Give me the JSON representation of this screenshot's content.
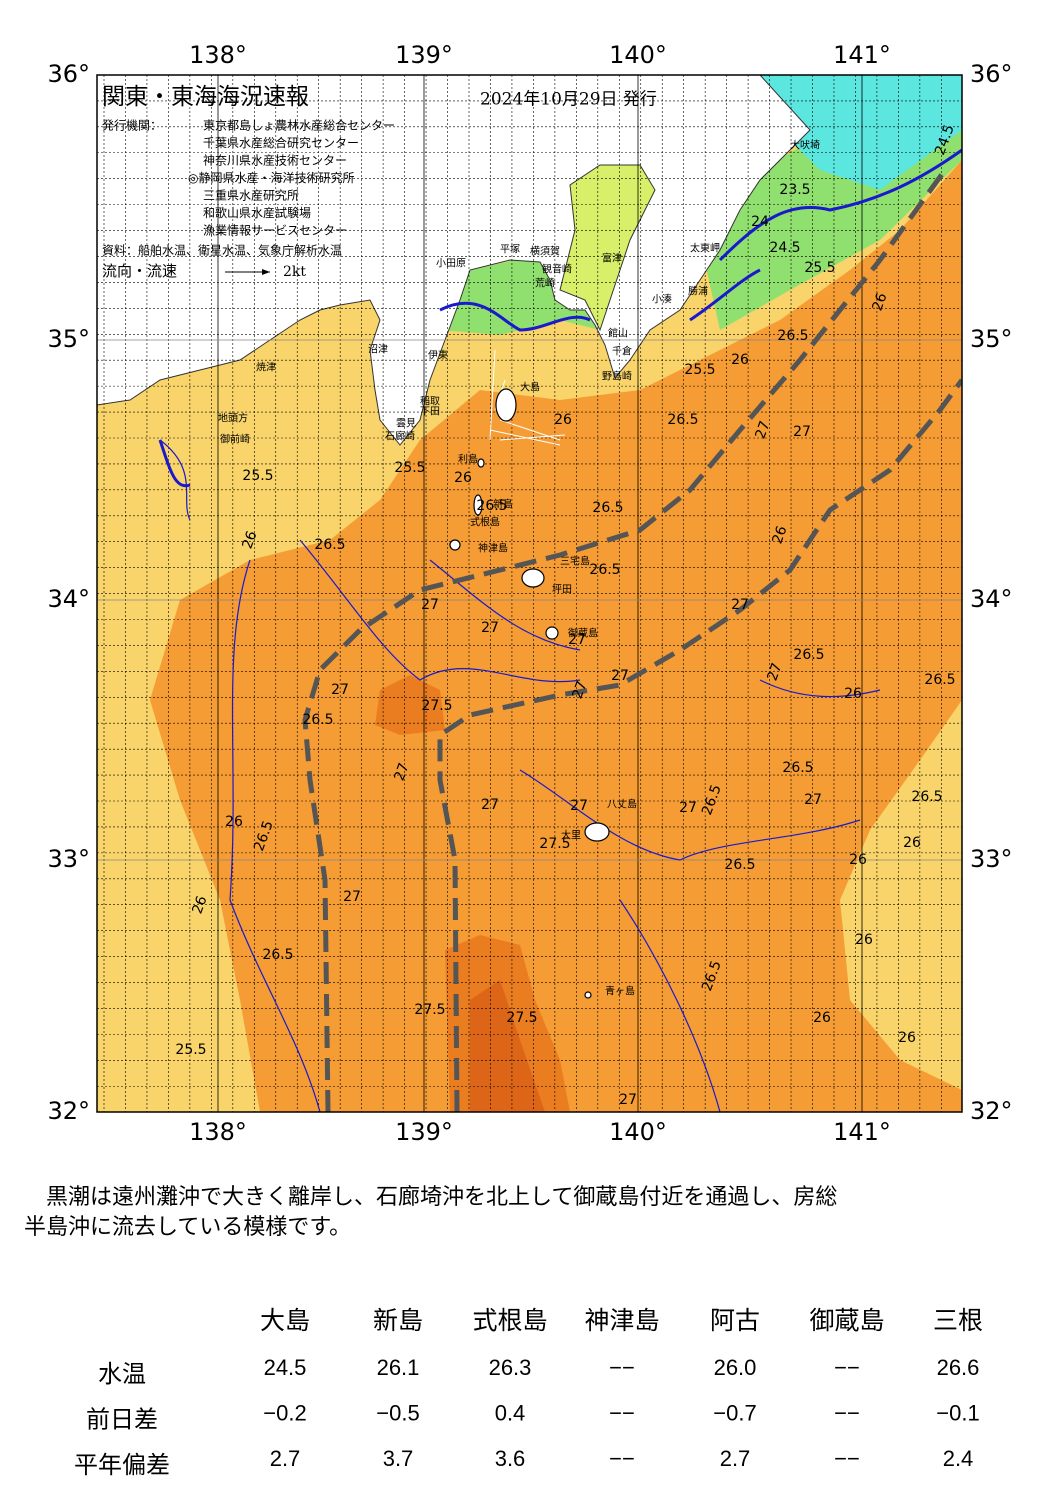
{
  "header": {
    "title": "関東・東海海況速報",
    "date": "2024年10月29日 発行",
    "issuer_label": "発行機関：",
    "issuers": [
      "東京都島しょ農林水産総合センター",
      "千葉県水産総合研究センター",
      "神奈川県水産技術センター",
      "◎静岡県水産・海洋技術研究所",
      "三重県水産研究所",
      "和歌山県水産試験場",
      "漁業情報サービスセンター"
    ],
    "source": "資料：船舶水温、衛星水温、気象庁解析水温",
    "legend_label": "流向・流速",
    "legend_speed": "2kt"
  },
  "axes": {
    "lon": [
      "138°",
      "139°",
      "140°",
      "141°"
    ],
    "lat": [
      "36°",
      "35°",
      "34°",
      "33°",
      "32°"
    ]
  },
  "places": [
    "大吠埼",
    "太東岬",
    "小湊",
    "勝浦",
    "館山",
    "千倉",
    "野島崎",
    "富津",
    "観音崎",
    "横須賀",
    "荒崎",
    "平塚",
    "小田原",
    "沼津",
    "伊東",
    "焼津",
    "御前崎",
    "地頭方",
    "稲取",
    "下田",
    "雲見",
    "石廊崎",
    "大島",
    "利島",
    "新島",
    "式根島",
    "神津島",
    "三宅島",
    "坪田",
    "御蔵島",
    "八丈島",
    "大里",
    "青ヶ島"
  ],
  "contour_labels": [
    "24.5",
    "23.5",
    "24",
    "24.5",
    "25.5",
    "26",
    "26.5",
    "26",
    "25.5",
    "26.5",
    "27",
    "27",
    "26",
    "25.5",
    "25.5",
    "26",
    "26.5",
    "26",
    "26.5",
    "26.5",
    "26",
    "26.5",
    "27",
    "27",
    "27",
    "27",
    "27",
    "27",
    "27",
    "26.5",
    "27",
    "26",
    "26.5",
    "27.5",
    "26.5",
    "27",
    "26.5",
    "27",
    "27",
    "27",
    "26.5",
    "27",
    "26.5",
    "26",
    "27.5",
    "26.5",
    "26",
    "26.5",
    "26",
    "27",
    "26",
    "26",
    "26.5",
    "27.5",
    "27.5",
    "26.5",
    "25.5",
    "26",
    "26",
    "27"
  ],
  "summary": [
    "　黒潮は遠州灘沖で大きく離岸し、石廊埼沖を北上して御蔵島付近を通過し、房総",
    "半島沖に流去している模様です。"
  ],
  "table": {
    "columns": [
      "大島",
      "新島",
      "式根島",
      "神津島",
      "阿古",
      "御蔵島",
      "三根"
    ],
    "rows": [
      {
        "label": "水温",
        "values": [
          "24.5",
          "26.1",
          "26.3",
          "−−",
          "26.0",
          "−−",
          "26.6"
        ]
      },
      {
        "label": "前日差",
        "values": [
          "−0.2",
          "−0.5",
          "0.4",
          "−−",
          "−0.7",
          "−−",
          "−0.1"
        ]
      },
      {
        "label": "平年偏差",
        "values": [
          "2.7",
          "3.7",
          "3.6",
          "−−",
          "2.7",
          "−−",
          "2.4"
        ]
      }
    ]
  }
}
